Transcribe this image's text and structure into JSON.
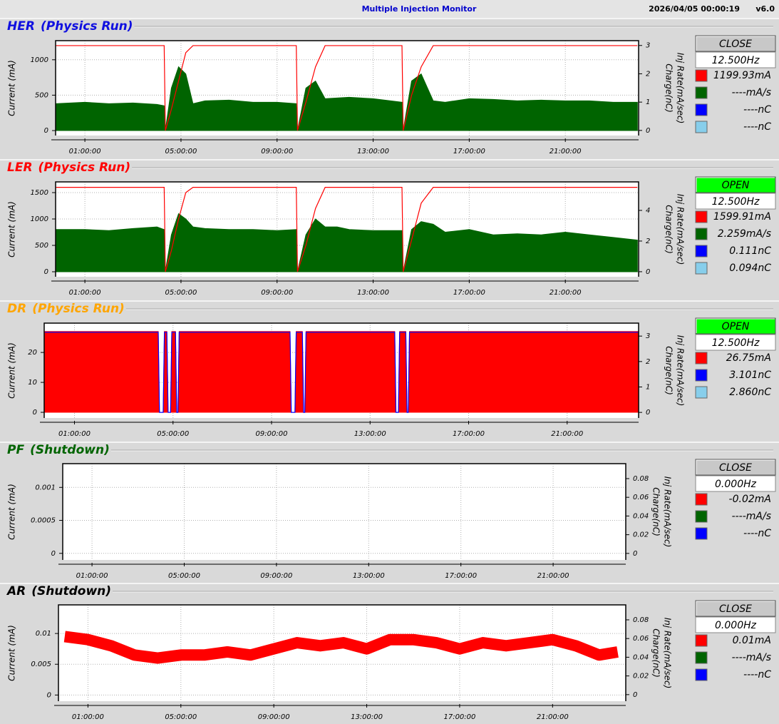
{
  "header": {
    "title": "Multiple Injection Monitor",
    "timestamp": "2026/04/05 00:00:19",
    "version": "v6.0"
  },
  "chart_data": [
    {
      "type": "line",
      "title": "HER",
      "subtitle": "(Physics Run)",
      "title_color": "#1010e0",
      "ylabel": "Current (mA)",
      "y2labels": [
        "Charge(nC)",
        "Inj Rate(mA/sec)"
      ],
      "status": "CLOSE",
      "status_color": "#c8c8c8",
      "rate": "12.500Hz",
      "readouts": [
        {
          "color": "#ff0000",
          "label": "1199.93mA"
        },
        {
          "color": "#006400",
          "label": "----mA/s"
        },
        {
          "color": "#0000ff",
          "label": "----nC"
        },
        {
          "color": "#87ceeb",
          "label": "----nC"
        }
      ],
      "xlim": [
        -0.22,
        24.05
      ],
      "xticks": [
        {
          "value": 1,
          "label": "01:00:00"
        },
        {
          "value": 5,
          "label": "05:00:00"
        },
        {
          "value": 9,
          "label": "09:00:00"
        },
        {
          "value": 13,
          "label": "13:00:00"
        },
        {
          "value": 17,
          "label": "17:00:00"
        },
        {
          "value": 21,
          "label": "21:00:00"
        }
      ],
      "ylim": [
        -70,
        1270
      ],
      "yticks": [
        0,
        500,
        1000
      ],
      "y2lim": [
        -0.18,
        3.17
      ],
      "y2ticks": [
        0,
        1,
        2,
        3
      ],
      "grid": true,
      "x": [
        -0.2,
        1,
        2,
        3,
        4,
        4.3,
        4.35,
        4.6,
        4.9,
        5.2,
        5.5,
        6,
        7,
        8,
        9,
        9.8,
        9.85,
        10.2,
        10.6,
        11,
        11.5,
        12,
        13,
        14.2,
        14.25,
        14.6,
        15,
        15.5,
        16,
        17,
        18,
        19,
        20,
        21,
        22,
        23,
        24
      ],
      "series": [
        {
          "color": "#006400",
          "style": "area",
          "values": [
            380,
            400,
            380,
            390,
            370,
            350,
            0,
            600,
            900,
            800,
            380,
            420,
            430,
            400,
            400,
            380,
            0,
            600,
            700,
            450,
            460,
            470,
            450,
            400,
            0,
            700,
            800,
            420,
            400,
            450,
            440,
            420,
            430,
            420,
            420,
            400,
            400
          ]
        },
        {
          "color": "#ff0000",
          "style": "line",
          "values": [
            1200,
            1200,
            1200,
            1200,
            1200,
            1200,
            0,
            300,
            700,
            1100,
            1200,
            1200,
            1200,
            1200,
            1200,
            1200,
            0,
            400,
            900,
            1200,
            1200,
            1200,
            1200,
            1200,
            0,
            500,
            900,
            1200,
            1200,
            1200,
            1200,
            1200,
            1200,
            1200,
            1200,
            1200,
            1200
          ]
        }
      ]
    },
    {
      "type": "line",
      "title": "LER",
      "subtitle": "(Physics Run)",
      "title_color": "#ff0000",
      "ylabel": "Current (mA)",
      "y2labels": [
        "Charge(nC)",
        "Inj Rate(mA/sec)"
      ],
      "status": "OPEN",
      "status_color": "#00ff00",
      "rate": "12.500Hz",
      "readouts": [
        {
          "color": "#ff0000",
          "label": "1599.91mA"
        },
        {
          "color": "#006400",
          "label": "2.259mA/s"
        },
        {
          "color": "#0000ff",
          "label": "0.111nC"
        },
        {
          "color": "#87ceeb",
          "label": "0.094nC"
        }
      ],
      "xlim": [
        -0.22,
        24.05
      ],
      "xticks": [
        {
          "value": 1,
          "label": "01:00:00"
        },
        {
          "value": 5,
          "label": "05:00:00"
        },
        {
          "value": 9,
          "label": "09:00:00"
        },
        {
          "value": 13,
          "label": "13:00:00"
        },
        {
          "value": 17,
          "label": "17:00:00"
        },
        {
          "value": 21,
          "label": "21:00:00"
        }
      ],
      "ylim": [
        -95,
        1703
      ],
      "yticks": [
        0,
        500,
        1000,
        1500
      ],
      "y2lim": [
        -0.33,
        5.86
      ],
      "y2ticks": [
        0,
        2,
        4
      ],
      "grid": true,
      "x": [
        -0.2,
        1,
        2,
        3,
        4,
        4.3,
        4.35,
        4.6,
        4.9,
        5.2,
        5.5,
        6,
        7,
        8,
        9,
        9.8,
        9.85,
        10.2,
        10.6,
        11,
        11.5,
        12,
        13,
        14.2,
        14.25,
        14.6,
        15,
        15.5,
        16,
        17,
        18,
        19,
        20,
        21,
        22,
        23,
        24
      ],
      "series": [
        {
          "color": "#006400",
          "style": "area",
          "values": [
            800,
            800,
            780,
            820,
            850,
            800,
            0,
            700,
            1100,
            1000,
            850,
            820,
            800,
            800,
            780,
            800,
            0,
            700,
            1000,
            850,
            850,
            800,
            780,
            780,
            0,
            800,
            950,
            900,
            750,
            800,
            700,
            720,
            700,
            750,
            700,
            650,
            600
          ]
        },
        {
          "color": "#ff0000",
          "style": "line",
          "values": [
            1600,
            1600,
            1600,
            1600,
            1600,
            1600,
            0,
            400,
            1000,
            1500,
            1600,
            1600,
            1600,
            1600,
            1600,
            1600,
            0,
            500,
            1200,
            1600,
            1600,
            1600,
            1600,
            1600,
            0,
            600,
            1300,
            1600,
            1600,
            1600,
            1600,
            1600,
            1600,
            1600,
            1600,
            1600,
            1600
          ]
        }
      ]
    },
    {
      "type": "line",
      "title": "DR",
      "subtitle": "(Physics Run)",
      "title_color": "#ffa500",
      "ylabel": "Current (mA)",
      "y2labels": [
        "Charge(nC)",
        "Inj Rate(mA/sec)"
      ],
      "status": "OPEN",
      "status_color": "#00ff00",
      "rate": "12.500Hz",
      "readouts": [
        {
          "color": "#ff0000",
          "label": "26.75mA"
        },
        {
          "color": "#0000ff",
          "label": "3.101nC"
        },
        {
          "color": "#87ceeb",
          "label": "2.860nC"
        }
      ],
      "xlim": [
        -0.23,
        23.9
      ],
      "xticks": [
        {
          "value": 1,
          "label": "01:00:00"
        },
        {
          "value": 5,
          "label": "05:00:00"
        },
        {
          "value": 9,
          "label": "09:00:00"
        },
        {
          "value": 13,
          "label": "13:00:00"
        },
        {
          "value": 17,
          "label": "17:00:00"
        },
        {
          "value": 21,
          "label": "21:00:00"
        }
      ],
      "ylim": [
        -1.9,
        29.8
      ],
      "yticks": [
        0,
        10,
        20
      ],
      "y2lim": [
        -0.22,
        3.51
      ],
      "y2ticks": [
        0,
        1,
        2,
        3
      ],
      "grid": true,
      "x": [
        -0.2,
        4.4,
        4.45,
        4.6,
        4.65,
        4.75,
        4.8,
        4.9,
        4.95,
        5.1,
        5.15,
        5.2,
        5.25,
        9.75,
        9.8,
        9.95,
        10.0,
        10.25,
        10.3,
        10.35,
        10.4,
        14.0,
        14.05,
        14.15,
        14.2,
        14.45,
        14.5,
        14.55,
        14.6,
        23.9
      ],
      "series": [
        {
          "color": "#ff0000",
          "style": "area",
          "values": [
            27,
            27,
            0,
            0,
            27,
            27,
            0,
            0,
            27,
            27,
            0,
            0,
            27,
            27,
            0,
            0,
            27,
            27,
            0,
            0,
            27,
            27,
            0,
            0,
            27,
            27,
            0,
            0,
            27,
            27
          ]
        },
        {
          "color": "#0000ff",
          "style": "line",
          "axis": "y2",
          "values": [
            3.15,
            3.15,
            0,
            0,
            3.15,
            3.15,
            0,
            0,
            3.15,
            3.15,
            0,
            0,
            3.15,
            3.15,
            0,
            0,
            3.15,
            3.15,
            0,
            0,
            3.15,
            3.15,
            0,
            0,
            3.15,
            3.15,
            0,
            0,
            3.15,
            3.15
          ]
        }
      ]
    },
    {
      "type": "line",
      "title": "PF",
      "subtitle": "(Shutdown)",
      "title_color": "#006400",
      "ylabel": "Current (mA)",
      "y2labels": [
        "Charge(nC)",
        "Inj Rate(mA/sec)"
      ],
      "status": "CLOSE",
      "status_color": "#c8c8c8",
      "rate": "0.000Hz",
      "readouts": [
        {
          "color": "#ff0000",
          "label": "-0.02mA"
        },
        {
          "color": "#006400",
          "label": "----mA/s"
        },
        {
          "color": "#0000ff",
          "label": "----nC"
        }
      ],
      "xlim": [
        -0.27,
        24.15
      ],
      "xticks": [
        {
          "value": 1,
          "label": "01:00:00"
        },
        {
          "value": 5,
          "label": "05:00:00"
        },
        {
          "value": 9,
          "label": "09:00:00"
        },
        {
          "value": 13,
          "label": "13:00:00"
        },
        {
          "value": 17,
          "label": "17:00:00"
        },
        {
          "value": 21,
          "label": "21:00:00"
        }
      ],
      "ylim": [
        -0.0001,
        0.00136
      ],
      "yticks": [
        0,
        0.0005,
        0.001
      ],
      "y2lim": [
        -0.007,
        0.096
      ],
      "y2ticks": [
        0,
        0.02,
        0.04,
        0.06,
        0.08
      ],
      "grid": true,
      "x": [],
      "series": []
    },
    {
      "type": "line",
      "title": "AR",
      "subtitle": "(Shutdown)",
      "title_color": "#000000",
      "ylabel": "Current (mA)",
      "y2labels": [
        "Charge(nC)",
        "Inj Rate(mA/sec)"
      ],
      "status": "CLOSE",
      "status_color": "#c8c8c8",
      "rate": "0.000Hz",
      "readouts": [
        {
          "color": "#ff0000",
          "label": "0.01mA"
        },
        {
          "color": "#006400",
          "label": "----mA/s"
        },
        {
          "color": "#0000ff",
          "label": "----nC"
        }
      ],
      "xlim": [
        -0.27,
        24.15
      ],
      "xticks": [
        {
          "value": 1,
          "label": "01:00:00"
        },
        {
          "value": 5,
          "label": "05:00:00"
        },
        {
          "value": 9,
          "label": "09:00:00"
        },
        {
          "value": 13,
          "label": "13:00:00"
        },
        {
          "value": 17,
          "label": "17:00:00"
        },
        {
          "value": 21,
          "label": "21:00:00"
        }
      ],
      "ylim": [
        -0.001,
        0.01465
      ],
      "yticks": [
        0,
        0.005,
        0.01
      ],
      "y2lim": [
        -0.007,
        0.096
      ],
      "y2ticks": [
        0,
        0.02,
        0.04,
        0.06,
        0.08
      ],
      "grid": true,
      "x": [
        0,
        1,
        2,
        3,
        4,
        5,
        6,
        7,
        8,
        9,
        10,
        11,
        12,
        13,
        14,
        15,
        16,
        17,
        18,
        19,
        20,
        21,
        22,
        23,
        23.8
      ],
      "series": [
        {
          "color": "#ff0000",
          "style": "band",
          "values": [
            0.0095,
            0.009,
            0.008,
            0.0065,
            0.006,
            0.0065,
            0.0065,
            0.007,
            0.0065,
            0.0075,
            0.0085,
            0.008,
            0.0085,
            0.0075,
            0.009,
            0.009,
            0.0085,
            0.0075,
            0.0085,
            0.008,
            0.0085,
            0.009,
            0.008,
            0.0065,
            0.007
          ]
        }
      ]
    }
  ]
}
